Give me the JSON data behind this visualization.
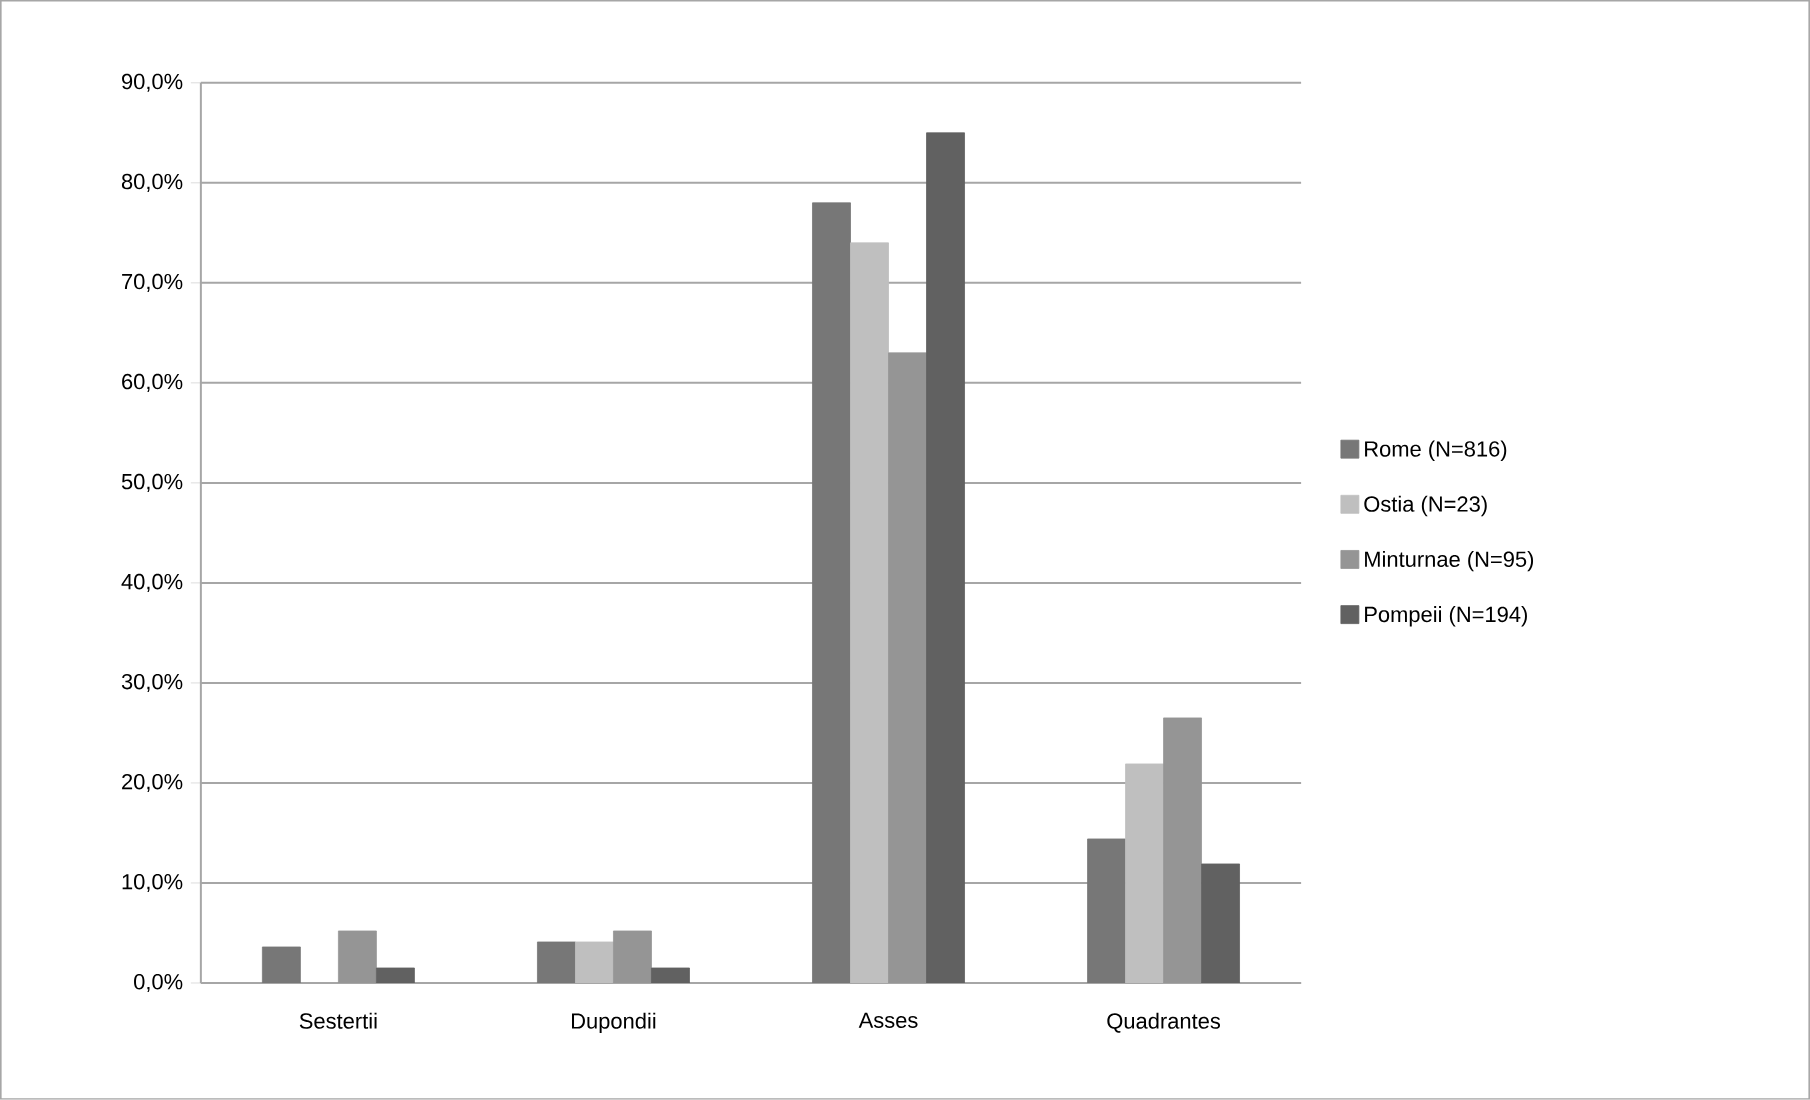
{
  "chart_data": {
    "type": "bar",
    "categories": [
      "Sestertii",
      "Dupondii",
      "Asses",
      "Quadrantes"
    ],
    "series": [
      {
        "name": "Rome (N=816)",
        "color": "#777777",
        "values": [
          3.6,
          4.1,
          78.0,
          14.4
        ]
      },
      {
        "name": "Ostia (N=23)",
        "color": "#bfbfbf",
        "values": [
          null,
          4.1,
          74.0,
          21.9
        ]
      },
      {
        "name": "Minturnae (N=95)",
        "color": "#959595",
        "values": [
          5.2,
          5.2,
          63.0,
          26.5
        ]
      },
      {
        "name": "Pompeii (N=194)",
        "color": "#616161",
        "values": [
          1.5,
          1.5,
          85.0,
          11.9
        ]
      }
    ],
    "ylim": [
      0,
      90
    ],
    "yticks": [
      {
        "value": 0,
        "label": "0,0%"
      },
      {
        "value": 10,
        "label": "10,0%"
      },
      {
        "value": 20,
        "label": "20,0%"
      },
      {
        "value": 30,
        "label": "30,0%"
      },
      {
        "value": 40,
        "label": "40,0%"
      },
      {
        "value": 50,
        "label": "50,0%"
      },
      {
        "value": 60,
        "label": "60,0%"
      },
      {
        "value": 70,
        "label": "70,0%"
      },
      {
        "value": 80,
        "label": "80,0%"
      },
      {
        "value": 90,
        "label": "90,0%"
      }
    ],
    "grid": "y",
    "legend": "right"
  }
}
